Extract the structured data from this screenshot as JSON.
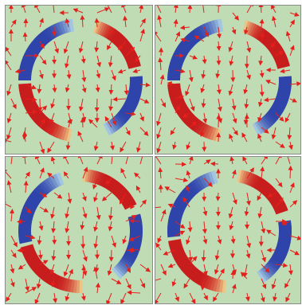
{
  "figure": {
    "panel_count": 4,
    "colors": {
      "background": "#bfdcb4",
      "frame": "#8a8a8a",
      "arrow": "#e4201c",
      "positive": "#c81d1d",
      "negative": "#2e44aa",
      "neutral_light": "#f5eb9c",
      "neutral_cool": "#bde4ee"
    },
    "panels": [
      {
        "id": "top-left",
        "rotation_deg": 0
      },
      {
        "id": "top-right",
        "rotation_deg": 0
      },
      {
        "id": "bottom-left",
        "rotation_deg": -12
      },
      {
        "id": "bottom-right",
        "rotation_deg": -6
      }
    ]
  }
}
